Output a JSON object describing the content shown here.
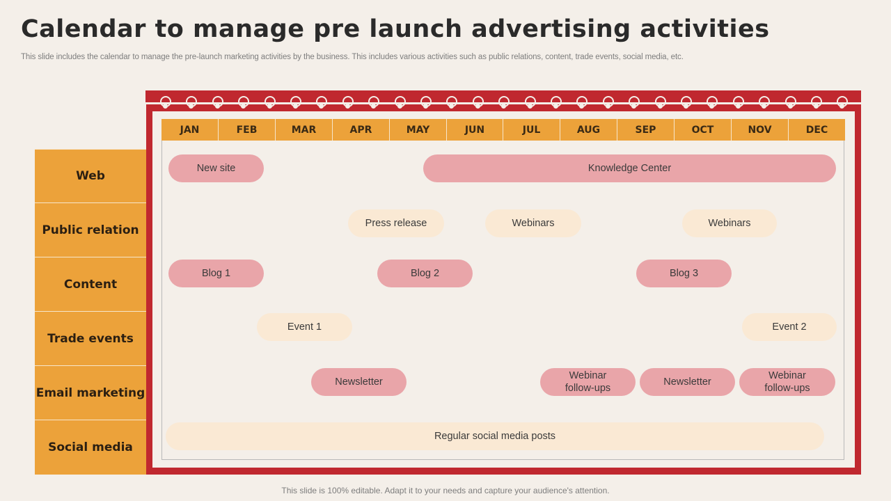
{
  "slide": {
    "title": "Calendar to manage pre launch advertising activities",
    "subtitle": "This slide includes the calendar to manage the pre-launch marketing activities by the business. This includes various activities such as public relations, content, trade events, social media, etc.",
    "footer": "This slide is 100% editable. Adapt it to your needs and capture your audience's attention."
  },
  "months": [
    "JAN",
    "FEB",
    "MAR",
    "APR",
    "MAY",
    "JUN",
    "JUL",
    "AUG",
    "SEP",
    "OCT",
    "NOV",
    "DEC"
  ],
  "rows": [
    "Web",
    "Public relation",
    "Content",
    "Trade events",
    "Email marketing",
    "Social media"
  ],
  "activities": {
    "new_site": "New site",
    "knowledge_center": "Knowledge Center",
    "press_release": "Press release",
    "webinars_1": "Webinars",
    "webinars_2": "Webinars",
    "blog_1": "Blog 1",
    "blog_2": "Blog 2",
    "blog_3": "Blog 3",
    "event_1": "Event 1",
    "event_2": "Event 2",
    "newsletter_1": "Newsletter",
    "webinar_followups_1": "Webinar\nfollow-ups",
    "newsletter_2": "Newsletter",
    "webinar_followups_2": "Webinar\nfollow-ups",
    "social_posts": "Regular social media posts"
  },
  "colors": {
    "accent_orange": "#eca23a",
    "frame_red": "#c0282f",
    "pill_pink": "#e9a5a9",
    "pill_cream": "#fae9d4",
    "background": "#f4efe9"
  }
}
